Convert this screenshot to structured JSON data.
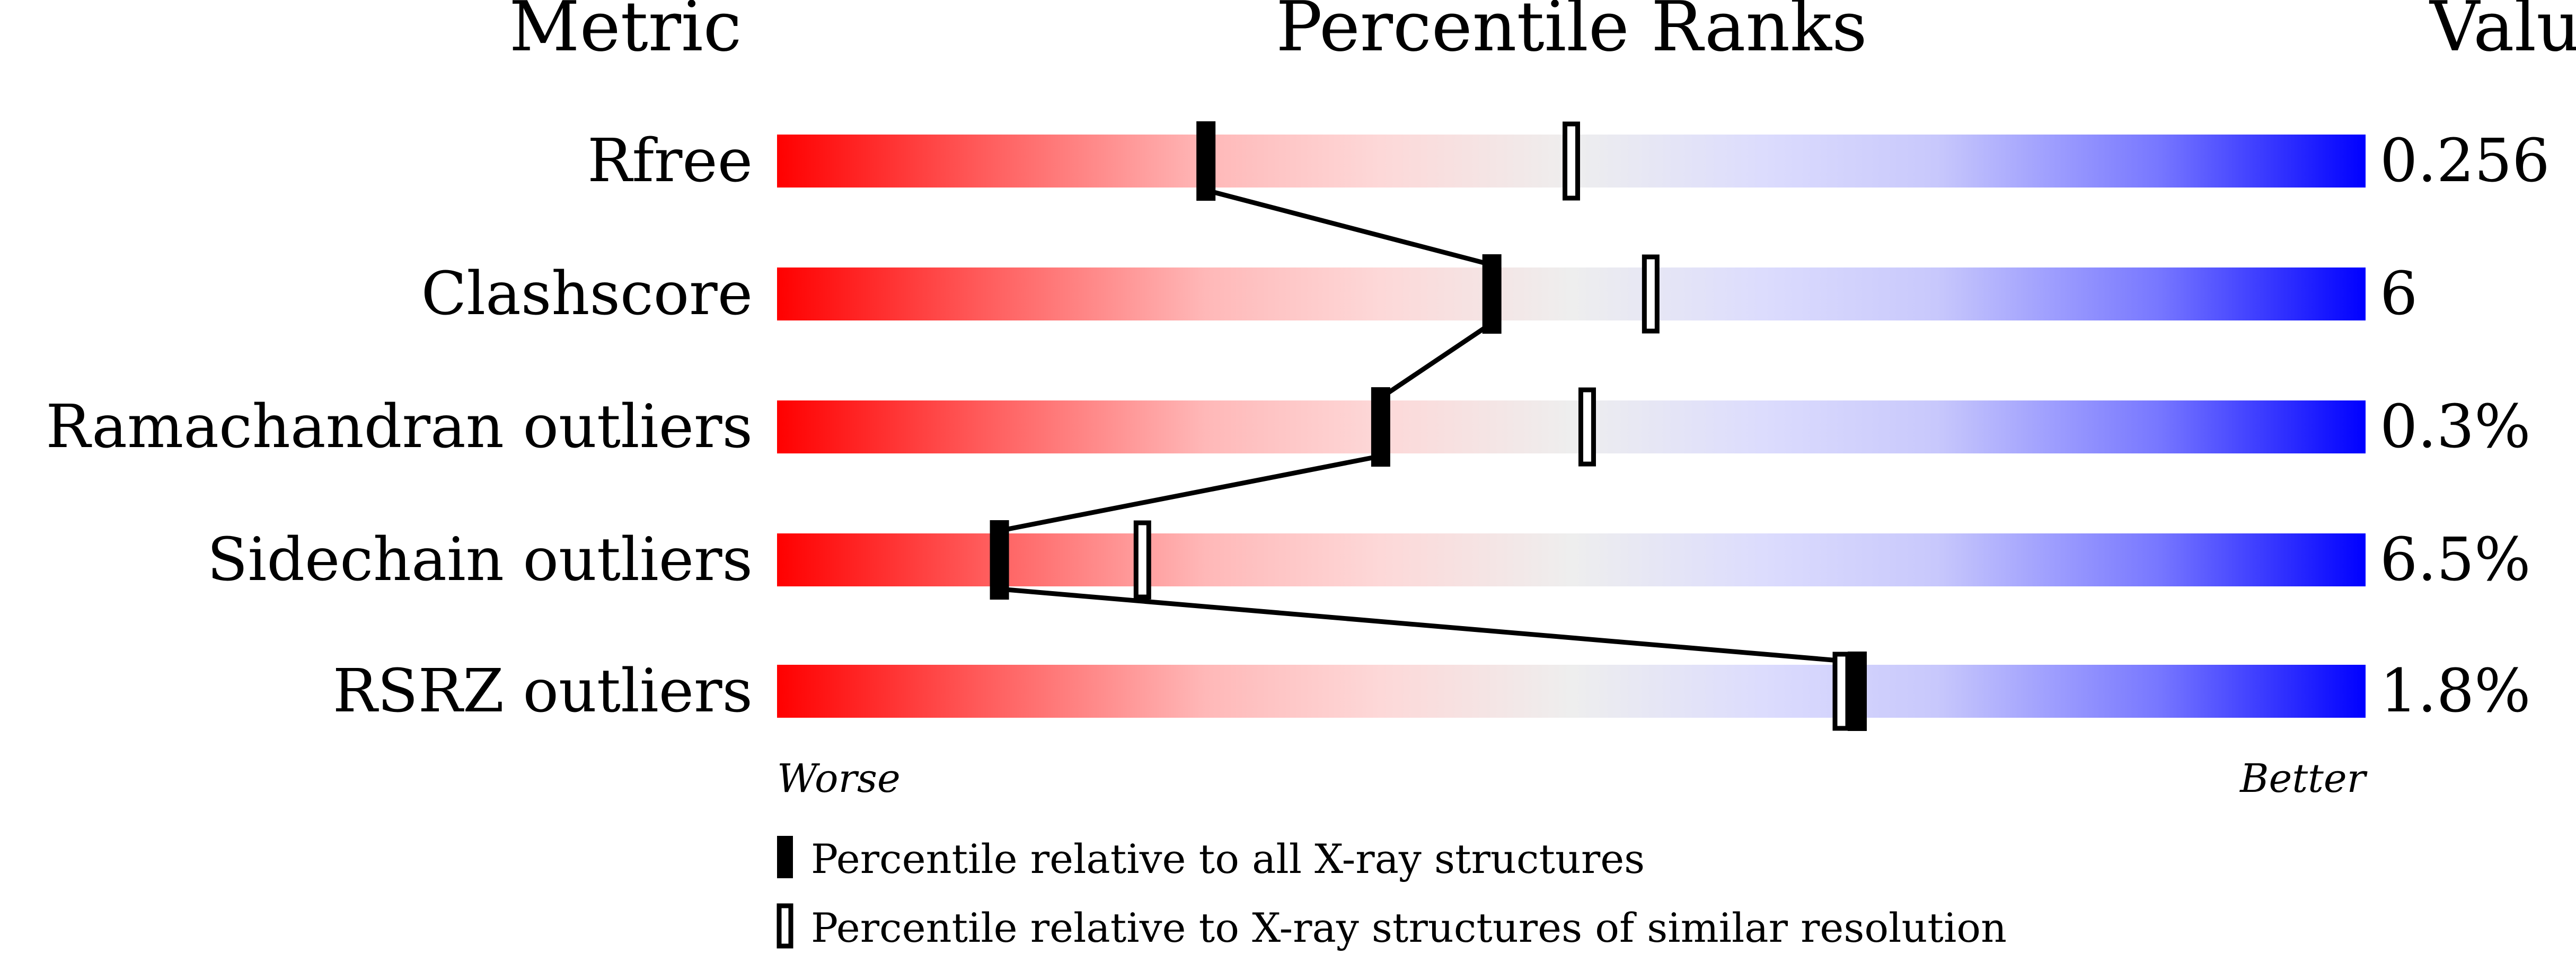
{
  "chart_data": {
    "type": "bar",
    "headers": {
      "metric": "Metric",
      "ranks": "Percentile Ranks",
      "value": "Value"
    },
    "xlim": [
      0,
      100
    ],
    "axis_notes": {
      "left": "Worse",
      "right": "Better"
    },
    "gradient_colors": {
      "worse": "#ff0000",
      "middle": "#eeeeee",
      "better": "#0000ff"
    },
    "rows": [
      {
        "metric": "Rfree",
        "value": "0.256",
        "percentile_all": 27,
        "percentile_similar": 50
      },
      {
        "metric": "Clashscore",
        "value": "6",
        "percentile_all": 45,
        "percentile_similar": 55
      },
      {
        "metric": "Ramachandran outliers",
        "value": "0.3%",
        "percentile_all": 38,
        "percentile_similar": 51
      },
      {
        "metric": "Sidechain outliers",
        "value": "6.5%",
        "percentile_all": 14,
        "percentile_similar": 23
      },
      {
        "metric": "RSRZ outliers",
        "value": "1.8%",
        "percentile_all": 68,
        "percentile_similar": 67
      }
    ],
    "legend": [
      {
        "marker": "filled",
        "label": "Percentile relative to all X-ray structures"
      },
      {
        "marker": "open",
        "label": "Percentile relative to X-ray structures of similar resolution"
      }
    ]
  }
}
